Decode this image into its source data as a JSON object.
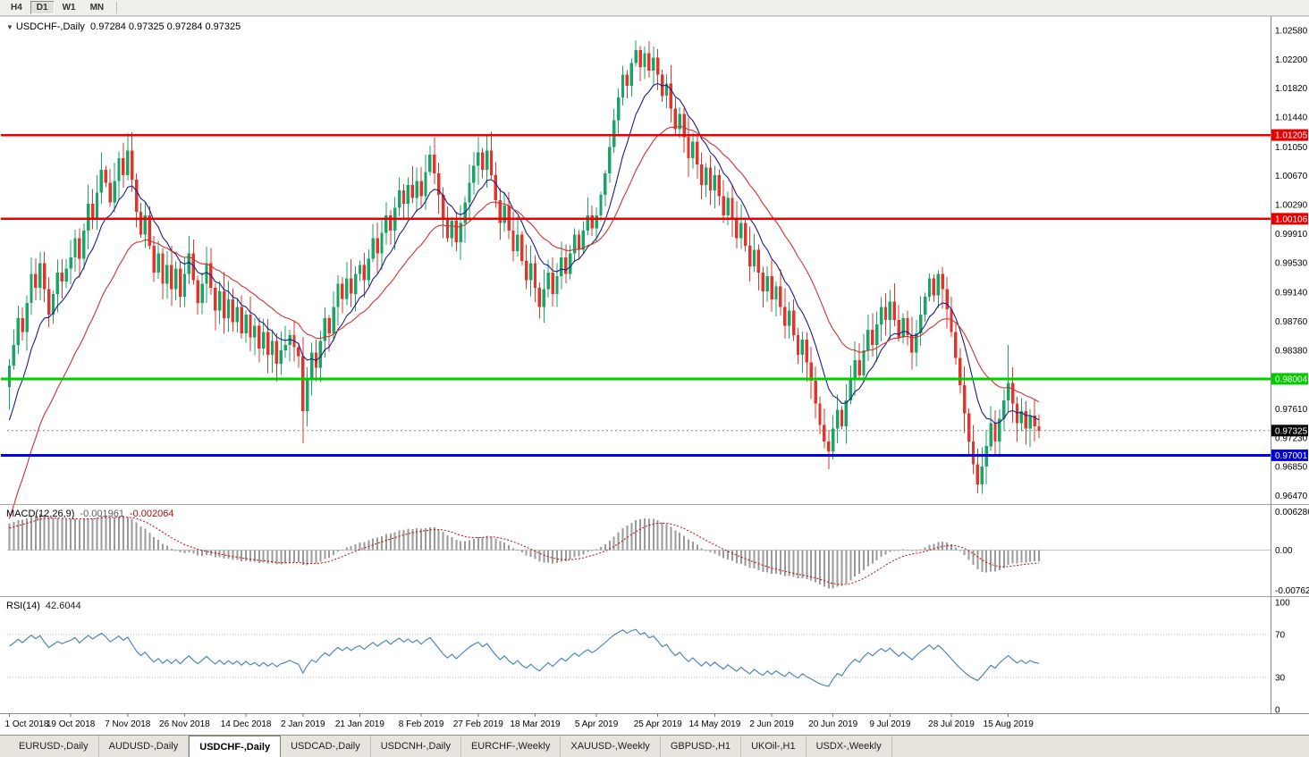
{
  "toolbar": {
    "periods": [
      {
        "label": "H4",
        "active": false
      },
      {
        "label": "D1",
        "active": true
      },
      {
        "label": "W1",
        "active": false
      },
      {
        "label": "MN",
        "active": false
      }
    ]
  },
  "chart": {
    "title_symbol": "USDCHF-,Daily",
    "ohlc_text": "0.97284 0.97325 0.97284 0.97325"
  },
  "icons": {
    "chart_menu": "▼"
  },
  "macd": {
    "label": "MACD(12,26,9)",
    "value1": "-0.001961",
    "value2": "-0.002064",
    "axis": {
      "top": "0.006286",
      "zero": "0.00",
      "bottom": "-0.00762"
    }
  },
  "rsi": {
    "label": "RSI(14)",
    "value": "42.6044",
    "axis": [
      "100",
      "70",
      "30",
      "0"
    ],
    "levels": [
      70,
      30
    ]
  },
  "colors": {
    "candle_up": "#18a566",
    "candle_down": "#e0352b",
    "ma_fast": "#1b1b8e",
    "ma_slow": "#d03030",
    "macd_hist": "#9a9a9a",
    "macd_signal": "#cc0000",
    "rsi": "#3e7cc0",
    "price_badge_bg": "#000000"
  },
  "chart_data": {
    "type": "candlestick",
    "symbol": "USDCHF",
    "timeframe": "Daily",
    "price_top": 1.0272,
    "price_bottom": 0.9636,
    "open_first": 0.979,
    "x_labels": [
      "1 Oct 2018",
      "19 Oct 2018",
      "7 Nov 2018",
      "26 Nov 2018",
      "14 Dec 2018",
      "2 Jan 2019",
      "21 Jan 2019",
      "8 Feb 2019",
      "27 Feb 2019",
      "18 Mar 2019",
      "5 Apr 2019",
      "25 Apr 2019",
      "14 May 2019",
      "2 Jun 2019",
      "20 Jun 2019",
      "9 Jul 2019",
      "28 Jul 2019",
      "15 Aug 2019"
    ],
    "x_label_indices": [
      0,
      14,
      27,
      40,
      54,
      67,
      80,
      94,
      107,
      120,
      134,
      148,
      161,
      174,
      188,
      201,
      215,
      228
    ],
    "closes": [
      0.9818,
      0.9845,
      0.988,
      0.9862,
      0.99,
      0.9938,
      0.992,
      0.9952,
      0.9918,
      0.9885,
      0.9912,
      0.994,
      0.9928,
      0.9945,
      0.996,
      0.9985,
      0.9958,
      0.9995,
      1.003,
      1.0012,
      1.0045,
      1.0075,
      1.0058,
      1.0032,
      1.006,
      1.009,
      1.0068,
      1.01,
      1.0062,
      1.002,
      0.999,
      1.0015,
      0.9975,
      0.994,
      0.9965,
      0.9925,
      0.995,
      0.9918,
      0.9945,
      0.9908,
      0.9938,
      0.9965,
      0.993,
      0.99,
      0.9925,
      0.9952,
      0.992,
      0.989,
      0.9915,
      0.988,
      0.9905,
      0.9875,
      0.9895,
      0.986,
      0.9885,
      0.9855,
      0.987,
      0.984,
      0.9862,
      0.9832,
      0.985,
      0.982,
      0.9838,
      0.9845,
      0.9858,
      0.9842,
      0.983,
      0.9758,
      0.98,
      0.9835,
      0.9815,
      0.985,
      0.988,
      0.986,
      0.9895,
      0.9925,
      0.9905,
      0.9932,
      0.9912,
      0.9938,
      0.995,
      0.993,
      0.9958,
      0.9985,
      0.9965,
      0.9992,
      1.0015,
      0.9995,
      1.0025,
      1.0048,
      1.003,
      1.0055,
      1.0038,
      1.006,
      1.004,
      1.0072,
      1.0095,
      1.007,
      1.0042,
      1.001,
      0.9985,
      1.0008,
      0.998,
      1.0005,
      1.0032,
      1.0058,
      1.008,
      1.0098,
      1.0075,
      1.01,
      1.0068,
      1.0035,
      1.0005,
      1.0028,
      0.9995,
      0.9968,
      0.999,
      0.9955,
      0.993,
      0.9952,
      0.992,
      0.9895,
      0.9918,
      0.994,
      0.9912,
      0.9935,
      0.996,
      0.9938,
      0.9965,
      0.999,
      0.997,
      0.9995,
      1.0015,
      0.9998,
      1.0015,
      1.0042,
      1.007,
      1.0105,
      1.014,
      1.017,
      1.02,
      1.0185,
      1.0215,
      1.0232,
      1.021,
      1.0228,
      1.0205,
      1.0222,
      1.02,
      1.0172,
      1.0188,
      1.0155,
      1.0128,
      1.0148,
      1.0118,
      1.009,
      1.0112,
      1.0082,
      1.0055,
      1.0078,
      1.0048,
      1.0068,
      1.004,
      1.0015,
      1.0038,
      1.001,
      0.9985,
      1.0005,
      0.9975,
      0.9948,
      0.997,
      0.994,
      0.9915,
      0.9935,
      0.9905,
      0.9922,
      0.9895,
      0.987,
      0.989,
      0.9858,
      0.9832,
      0.9852,
      0.9822,
      0.9798,
      0.9768,
      0.974,
      0.9718,
      0.9705,
      0.9735,
      0.976,
      0.9738,
      0.9772,
      0.98,
      0.9825,
      0.9805,
      0.9838,
      0.9865,
      0.9845,
      0.9872,
      0.9895,
      0.9878,
      0.9902,
      0.9878,
      0.9855,
      0.988,
      0.9858,
      0.9835,
      0.986,
      0.9885,
      0.9908,
      0.9932,
      0.991,
      0.9938,
      0.9918,
      0.9892,
      0.9862,
      0.9828,
      0.9792,
      0.9755,
      0.9718,
      0.9688,
      0.9662,
      0.9685,
      0.9712,
      0.9742,
      0.9718,
      0.9748,
      0.9772,
      0.9795,
      0.9768,
      0.9742,
      0.9758,
      0.9735,
      0.9752,
      0.9738,
      0.97325
    ],
    "wick_overrides": {
      "0": {
        "l": 0.976
      },
      "27": {
        "h": 1.0123
      },
      "67": {
        "l": 0.9716
      },
      "107": {
        "h": 1.0118
      },
      "143": {
        "h": 1.0245
      },
      "187": {
        "l": 0.9682
      },
      "221": {
        "l": 0.965
      },
      "228": {
        "h": 0.9845
      }
    },
    "ma_fast_period": 10,
    "ma_fast_seed": 0.973,
    "ma_slow_period": 25,
    "ma_slow_seed": 0.96,
    "macd_seed_fast": 0.976,
    "macd_seed_slow": 0.9706,
    "macd_seed_signal": 0.0042,
    "rsi_seed_gain": 0.0016,
    "rsi_seed_loss": 0.0011,
    "y_ticks": [
      "1.02580",
      "1.02200",
      "1.01820",
      "1.01440",
      "1.01050",
      "1.00670",
      "1.00290",
      "0.99910",
      "0.99530",
      "0.99140",
      "0.98760",
      "0.98380",
      "0.97610",
      "0.97230",
      "0.96850",
      "0.96470"
    ],
    "levels": [
      {
        "price": 1.01205,
        "label": "1.01205",
        "color": "#e80000",
        "width": 2.5
      },
      {
        "price": 1.00106,
        "label": "1.00106",
        "color": "#e80000",
        "width": 2.5
      },
      {
        "price": 0.98004,
        "label": "0.98004",
        "color": "#00cc00",
        "width": 3
      },
      {
        "price": 0.97001,
        "label": "0.97001",
        "color": "#0000e0",
        "width": 3
      }
    ],
    "current_price": {
      "value": 0.97325,
      "label": "0.97325"
    }
  },
  "tabs": [
    {
      "label": "EURUSD-,Daily",
      "slug": "eurusd-daily",
      "active": false
    },
    {
      "label": "AUDUSD-,Daily",
      "slug": "audusd-daily",
      "active": false
    },
    {
      "label": "USDCHF-,Daily",
      "slug": "usdchf-daily",
      "active": true
    },
    {
      "label": "USDCAD-,Daily",
      "slug": "usdcad-daily",
      "active": false
    },
    {
      "label": "USDCNH-,Daily",
      "slug": "usdcnh-daily",
      "active": false
    },
    {
      "label": "EURCHF-,Weekly",
      "slug": "eurchf-weekly",
      "active": false
    },
    {
      "label": "XAUUSD-,Weekly",
      "slug": "xauusd-weekly",
      "active": false
    },
    {
      "label": "GBPUSD-,H1",
      "slug": "gbpusd-h1",
      "active": false
    },
    {
      "label": "UKOil-,H1",
      "slug": "ukoil-h1",
      "active": false
    },
    {
      "label": "USDX-,Weekly",
      "slug": "usdx-weekly",
      "active": false
    }
  ]
}
